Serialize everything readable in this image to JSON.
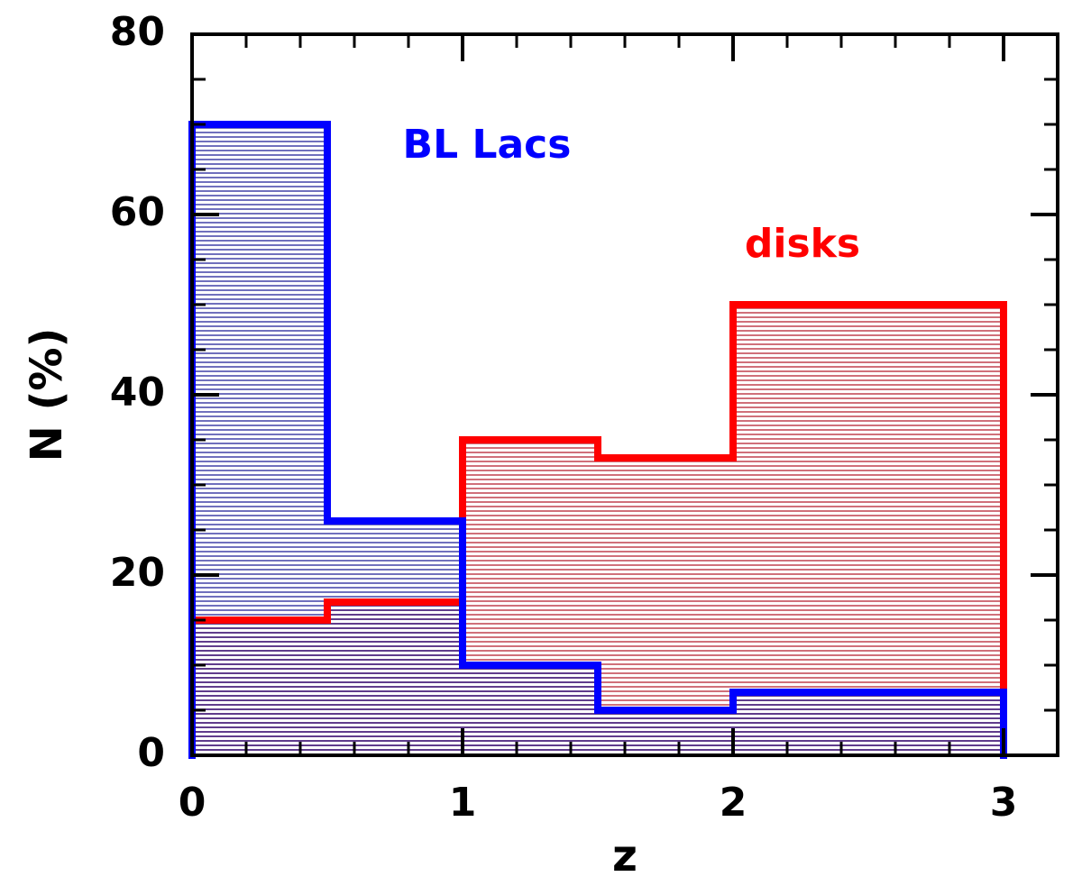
{
  "chart_data": {
    "type": "histogram",
    "xlabel": "z",
    "ylabel": "N (%)",
    "bins": [
      0,
      0.5,
      1,
      1.5,
      2,
      3
    ],
    "series": [
      {
        "name": "disks",
        "color": "#ff0000",
        "values": [
          15,
          17,
          35,
          33,
          50
        ]
      },
      {
        "name": "BL Lacs",
        "color": "#0000ff",
        "values": [
          70,
          26,
          10,
          5,
          7
        ]
      }
    ],
    "xlim": [
      0,
      3.2
    ],
    "ylim": [
      0,
      80
    ],
    "xticks": [
      0,
      1,
      2,
      3
    ],
    "yticks": [
      0,
      20,
      40,
      60,
      80
    ]
  }
}
